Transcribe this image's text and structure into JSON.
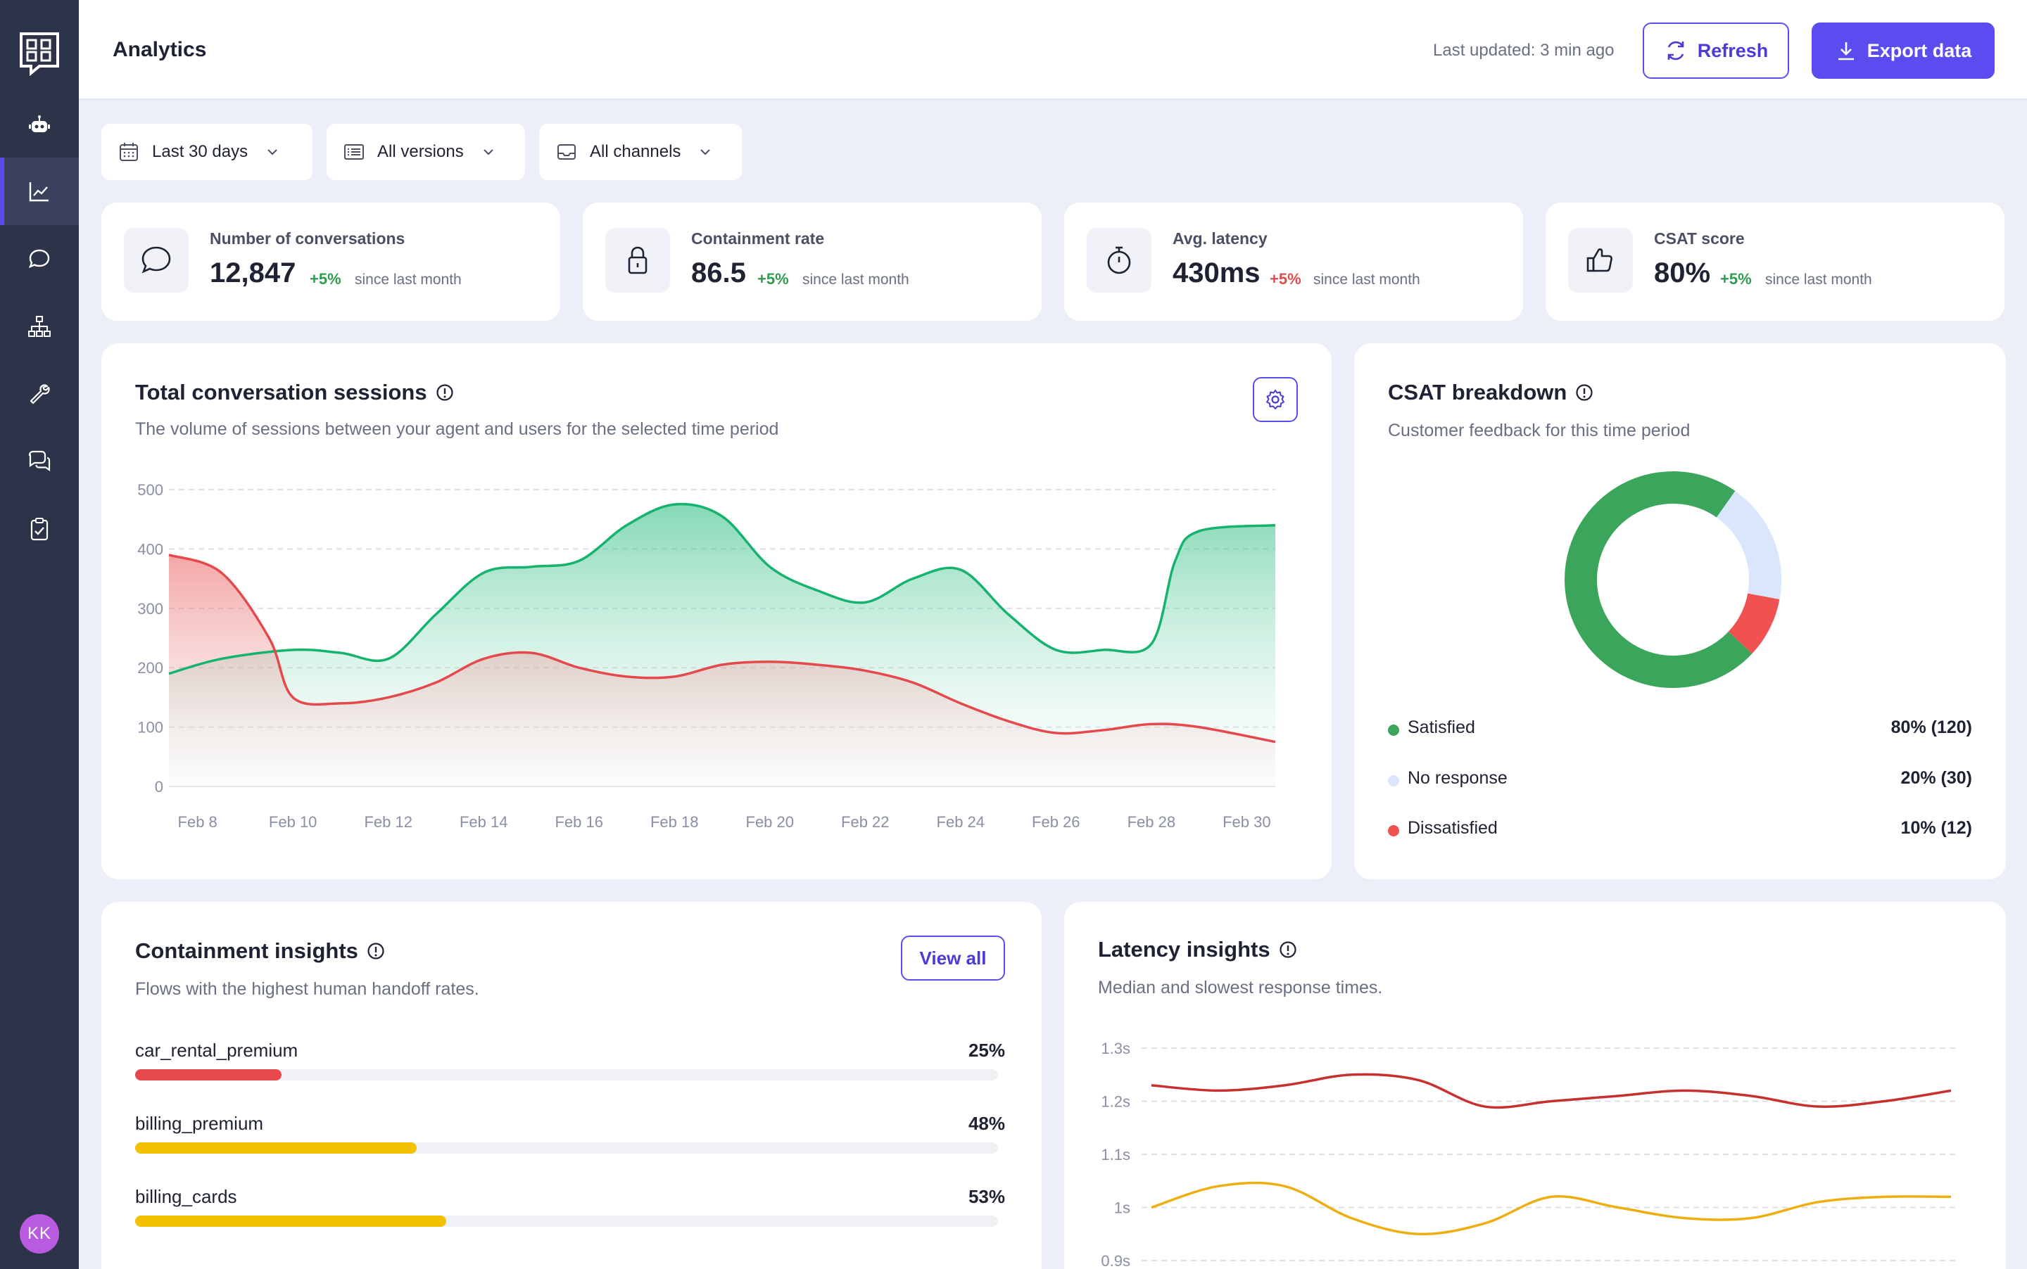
{
  "app": {
    "title": "Analytics",
    "avatar_initials": "KK"
  },
  "header": {
    "last_updated": "Last updated: 3 min ago",
    "refresh_label": "Refresh",
    "export_label": "Export data"
  },
  "sidebar": {
    "items": [
      {
        "icon": "bot-icon"
      },
      {
        "icon": "analytics-icon",
        "active": true
      },
      {
        "icon": "chat-icon"
      },
      {
        "icon": "flows-icon"
      },
      {
        "icon": "wrench-icon"
      },
      {
        "icon": "conversations-icon"
      },
      {
        "icon": "checklist-icon"
      }
    ]
  },
  "filters": {
    "date": "Last 30 days",
    "version": "All versions",
    "channel": "All channels"
  },
  "kpis": [
    {
      "label": "Number of conversations",
      "value": "12,847",
      "delta": "+5%",
      "since": "since last month",
      "trend": "up"
    },
    {
      "label": "Containment rate",
      "value": "86.5",
      "delta": "+5%",
      "since": "since last month",
      "trend": "up"
    },
    {
      "label": "Avg. latency",
      "value": "430ms",
      "delta": "+5%",
      "since": "since last month",
      "trend": "down"
    },
    {
      "label": "CSAT score",
      "value": "80%",
      "delta": "+5%",
      "since": "since last month",
      "trend": "up"
    }
  ],
  "sessions": {
    "title": "Total conversation sessions",
    "subtitle": "The volume of sessions between your agent and users for the selected time period"
  },
  "csat": {
    "title": "CSAT breakdown",
    "subtitle": "Customer feedback for this time period",
    "items": [
      {
        "name": "Satisfied",
        "value": "80% (120)",
        "color": "#3BA55C"
      },
      {
        "name": "No response",
        "value": "20% (30)",
        "color": "#D9E6FB"
      },
      {
        "name": "Dissatisfied",
        "value": "10% (12)",
        "color": "#F05252"
      }
    ]
  },
  "containment": {
    "title": "Containment insights",
    "subtitle": "Flows with the highest human handoff rates.",
    "view_all": "View all",
    "flows": [
      {
        "name": "car_rental_premium",
        "pct": "25%",
        "value": 25,
        "color": "#E5484D"
      },
      {
        "name": "billing_premium",
        "pct": "48%",
        "value": 48,
        "color": "#F2C200"
      },
      {
        "name": "billing_cards",
        "pct": "53%",
        "value": 53,
        "color": "#F2C200"
      }
    ]
  },
  "latency": {
    "title": "Latency insights",
    "subtitle": "Median and slowest response times."
  },
  "chart_data": [
    {
      "type": "area",
      "title": "Total conversation sessions",
      "xlabel": "",
      "ylabel": "",
      "x_ticks": [
        "Feb 8",
        "Feb 10",
        "Feb 12",
        "Feb 14",
        "Feb 16",
        "Feb 18",
        "Feb 20",
        "Feb 22",
        "Feb 24",
        "Feb 26",
        "Feb 28",
        "Feb 30"
      ],
      "y_ticks": [
        "0",
        "100",
        "200",
        "300",
        "400",
        "500"
      ],
      "ylim": [
        0,
        500
      ],
      "xlim": [
        7.4,
        30.6
      ],
      "grid": true,
      "series": [
        {
          "name": "green",
          "color": "#16B36E",
          "x": [
            7.4,
            8.5,
            10,
            11,
            12,
            13,
            14,
            15,
            16,
            17,
            18,
            19,
            20,
            21,
            22,
            23,
            24,
            25,
            26,
            27,
            28,
            28.5,
            29,
            30.6
          ],
          "y": [
            190,
            215,
            230,
            225,
            215,
            290,
            360,
            370,
            380,
            440,
            475,
            455,
            370,
            330,
            310,
            350,
            365,
            290,
            230,
            230,
            240,
            380,
            430,
            440
          ]
        },
        {
          "name": "red",
          "color": "#E5484D",
          "x": [
            7.4,
            8.5,
            9.5,
            10,
            11,
            12,
            13,
            14,
            15,
            16,
            17,
            18,
            19,
            20,
            21,
            22,
            23,
            24,
            25,
            26,
            27,
            28,
            29,
            30.6
          ],
          "y": [
            390,
            360,
            250,
            150,
            140,
            150,
            175,
            215,
            225,
            200,
            185,
            185,
            205,
            210,
            205,
            195,
            175,
            140,
            110,
            90,
            95,
            105,
            100,
            75
          ]
        }
      ]
    },
    {
      "type": "pie",
      "title": "CSAT breakdown",
      "categories": [
        "Satisfied",
        "No response",
        "Dissatisfied"
      ],
      "values": [
        80,
        20,
        10
      ],
      "colors": [
        "#3BA55C",
        "#D9E6FB",
        "#F05252"
      ]
    },
    {
      "type": "line",
      "title": "Latency insights",
      "y_ticks": [
        "0.9s",
        "1s",
        "1.1s",
        "1.2s",
        "1.3s"
      ],
      "ylim": [
        0.9,
        1.3
      ],
      "grid": true,
      "series": [
        {
          "name": "slowest",
          "color": "#C8302F",
          "x": [
            0,
            1,
            2,
            3,
            4,
            5,
            6,
            7,
            8,
            9,
            10,
            11,
            12
          ],
          "y": [
            1.23,
            1.22,
            1.23,
            1.25,
            1.24,
            1.19,
            1.2,
            1.21,
            1.22,
            1.21,
            1.19,
            1.2,
            1.22
          ]
        },
        {
          "name": "median",
          "color": "#EDAE10",
          "x": [
            0,
            1,
            2,
            3,
            4,
            5,
            6,
            7,
            8,
            9,
            10,
            11,
            12
          ],
          "y": [
            1.0,
            1.04,
            1.04,
            0.98,
            0.95,
            0.97,
            1.02,
            1.0,
            0.98,
            0.98,
            1.01,
            1.02,
            1.02
          ]
        }
      ]
    }
  ]
}
